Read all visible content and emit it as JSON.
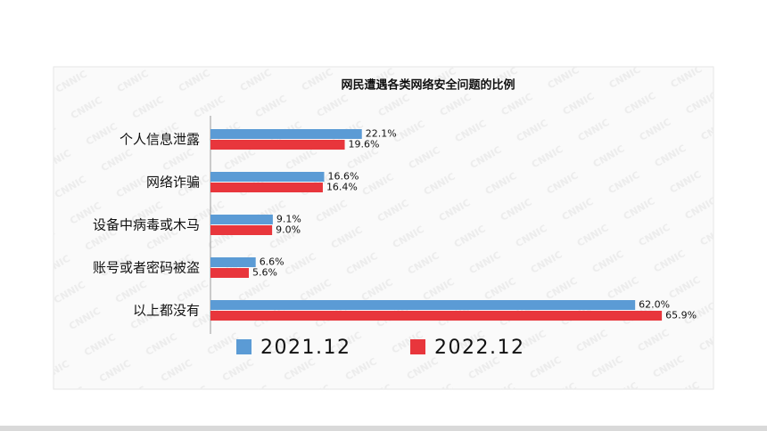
{
  "chart_data": {
    "type": "hbar",
    "title": "网民遭遇各类网络安全问题的比例",
    "categories": [
      "个人信息泄露",
      "网络诈骗",
      "设备中病毒或木马",
      "账号或者密码被盗",
      "以上都没有"
    ],
    "series": [
      {
        "name": "2021.12",
        "color": "#5b9bd5",
        "values": [
          22.1,
          16.6,
          9.1,
          6.6,
          62.0
        ],
        "value_labels": [
          "22.1%",
          "16.6%",
          "9.1%",
          "6.6%",
          "62.0%"
        ]
      },
      {
        "name": "2022.12",
        "color": "#e8363c",
        "values": [
          19.6,
          16.4,
          9.0,
          5.6,
          65.9
        ],
        "value_labels": [
          "19.6%",
          "16.4%",
          "9.0%",
          "5.6%",
          "65.9%"
        ]
      }
    ],
    "xlim": [
      0,
      72
    ],
    "legend": "bottom"
  }
}
